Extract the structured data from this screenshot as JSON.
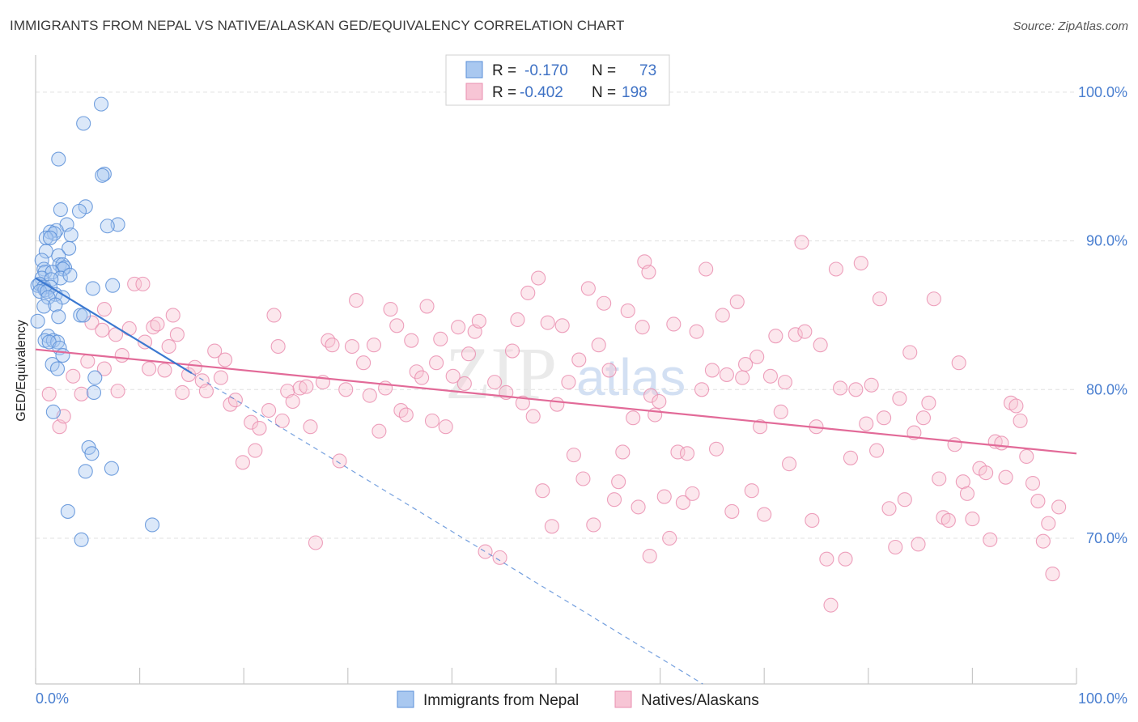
{
  "header": {
    "title": "IMMIGRANTS FROM NEPAL VS NATIVE/ALASKAN GED/EQUIVALENCY CORRELATION CHART",
    "source": "Source: ZipAtlas.com"
  },
  "watermark": {
    "zip": "ZIP",
    "atlas": "atlas"
  },
  "legend": {
    "items": [
      {
        "r_label": "R =",
        "r_value": "-0.170",
        "n_label": "N =",
        "n_value": "73"
      },
      {
        "r_label": "R =",
        "r_value": "-0.402",
        "n_label": "N =",
        "n_value": "198"
      }
    ]
  },
  "colors": {
    "blue_fill": "#a9c8f0",
    "blue_stroke": "#5a8fd8",
    "blue_line": "#3b78d0",
    "pink_fill": "#f7c5d5",
    "pink_stroke": "#ea8fb0",
    "pink_line": "#e26a98",
    "grid": "#e0e0e0",
    "tick_text": "#4a7fd0"
  },
  "chart_data": {
    "type": "scatter",
    "title": "IMMIGRANTS FROM NEPAL VS NATIVE/ALASKAN GED/EQUIVALENCY CORRELATION CHART",
    "xlabel": "",
    "ylabel": "GED/Equivalency",
    "xlim": [
      0,
      100
    ],
    "ylim": [
      60.2,
      102.5
    ],
    "x_tick_labels": [
      "0.0%",
      "100.0%"
    ],
    "y_ticks": [
      70,
      80,
      90,
      100
    ],
    "y_tick_labels": [
      "70.0%",
      "80.0%",
      "90.0%",
      "100.0%"
    ],
    "grid": true,
    "series": [
      {
        "name": "Immigrants from Nepal",
        "color": "blue",
        "R": -0.17,
        "N": 73,
        "trend": {
          "x": [
            0,
            15
          ],
          "y": [
            87.5,
            81.1
          ]
        },
        "trend_extension": {
          "x": [
            15,
            64.1
          ],
          "y": [
            81.1,
            60.2
          ]
        },
        "points": [
          [
            6.3,
            99.2
          ],
          [
            4.6,
            97.9
          ],
          [
            2.2,
            95.5
          ],
          [
            6.6,
            94.5
          ],
          [
            6.4,
            94.4
          ],
          [
            4.8,
            92.3
          ],
          [
            4.2,
            92.0
          ],
          [
            2.4,
            92.1
          ],
          [
            3.0,
            91.1
          ],
          [
            7.9,
            91.1
          ],
          [
            6.9,
            91.0
          ],
          [
            2.0,
            90.7
          ],
          [
            1.4,
            90.6
          ],
          [
            1.8,
            90.5
          ],
          [
            3.4,
            90.4
          ],
          [
            1.0,
            90.2
          ],
          [
            1.4,
            90.2
          ],
          [
            3.2,
            89.5
          ],
          [
            1.0,
            89.3
          ],
          [
            2.2,
            89.0
          ],
          [
            0.6,
            88.7
          ],
          [
            2.3,
            88.4
          ],
          [
            2.6,
            88.4
          ],
          [
            2.8,
            88.2
          ],
          [
            0.8,
            88.1
          ],
          [
            2.6,
            88.1
          ],
          [
            0.9,
            87.9
          ],
          [
            1.6,
            87.9
          ],
          [
            0.6,
            87.5
          ],
          [
            2.4,
            87.5
          ],
          [
            3.3,
            87.7
          ],
          [
            1.5,
            87.4
          ],
          [
            0.2,
            87.0
          ],
          [
            0.4,
            87.1
          ],
          [
            0.8,
            86.9
          ],
          [
            1.4,
            86.9
          ],
          [
            0.9,
            86.7
          ],
          [
            0.4,
            86.6
          ],
          [
            1.1,
            86.6
          ],
          [
            1.9,
            86.4
          ],
          [
            1.2,
            86.2
          ],
          [
            2.6,
            86.2
          ],
          [
            7.4,
            87.0
          ],
          [
            5.5,
            86.8
          ],
          [
            0.8,
            85.6
          ],
          [
            1.9,
            85.7
          ],
          [
            4.3,
            85.0
          ],
          [
            4.6,
            85.0
          ],
          [
            2.2,
            84.9
          ],
          [
            0.2,
            84.6
          ],
          [
            1.2,
            83.6
          ],
          [
            0.9,
            83.3
          ],
          [
            1.7,
            83.3
          ],
          [
            2.1,
            83.2
          ],
          [
            1.3,
            83.2
          ],
          [
            2.3,
            82.8
          ],
          [
            2.6,
            82.3
          ],
          [
            1.6,
            81.7
          ],
          [
            2.1,
            81.4
          ],
          [
            5.7,
            80.8
          ],
          [
            5.6,
            79.8
          ],
          [
            1.7,
            78.5
          ],
          [
            5.1,
            76.1
          ],
          [
            5.4,
            75.7
          ],
          [
            7.3,
            74.7
          ],
          [
            4.8,
            74.5
          ],
          [
            3.1,
            71.8
          ],
          [
            11.2,
            70.9
          ],
          [
            4.4,
            69.9
          ]
        ]
      },
      {
        "name": "Natives/Alaskans",
        "color": "pink",
        "R": -0.402,
        "N": 198,
        "trend": {
          "x": [
            0,
            100
          ],
          "y": [
            82.7,
            75.7
          ]
        },
        "points": [
          [
            1.3,
            79.7
          ],
          [
            2.3,
            77.5
          ],
          [
            2.7,
            78.2
          ],
          [
            3.6,
            80.9
          ],
          [
            4.4,
            79.7
          ],
          [
            5.0,
            81.9
          ],
          [
            5.4,
            84.5
          ],
          [
            6.4,
            84.0
          ],
          [
            6.6,
            85.4
          ],
          [
            6.6,
            81.4
          ],
          [
            7.7,
            83.7
          ],
          [
            7.9,
            79.9
          ],
          [
            8.3,
            82.3
          ],
          [
            9.0,
            84.1
          ],
          [
            9.5,
            87.1
          ],
          [
            10.3,
            87.1
          ],
          [
            10.5,
            83.2
          ],
          [
            10.9,
            81.4
          ],
          [
            11.3,
            84.2
          ],
          [
            11.7,
            84.4
          ],
          [
            12.4,
            81.3
          ],
          [
            12.8,
            82.9
          ],
          [
            13.2,
            85.0
          ],
          [
            13.6,
            83.7
          ],
          [
            14.1,
            79.8
          ],
          [
            14.7,
            81.0
          ],
          [
            15.3,
            81.5
          ],
          [
            16.0,
            80.6
          ],
          [
            16.4,
            79.9
          ],
          [
            17.2,
            82.6
          ],
          [
            17.8,
            80.8
          ],
          [
            18.2,
            82.0
          ],
          [
            18.7,
            79.0
          ],
          [
            19.2,
            79.3
          ],
          [
            19.9,
            75.1
          ],
          [
            20.7,
            77.8
          ],
          [
            21.1,
            75.9
          ],
          [
            21.5,
            77.4
          ],
          [
            22.4,
            78.6
          ],
          [
            22.9,
            85.0
          ],
          [
            23.3,
            82.9
          ],
          [
            23.7,
            77.9
          ],
          [
            24.2,
            79.9
          ],
          [
            24.7,
            79.2
          ],
          [
            25.4,
            80.1
          ],
          [
            26.0,
            80.2
          ],
          [
            26.4,
            77.5
          ],
          [
            26.9,
            69.7
          ],
          [
            27.6,
            80.5
          ],
          [
            28.1,
            83.3
          ],
          [
            28.5,
            83.0
          ],
          [
            29.2,
            75.2
          ],
          [
            29.8,
            80.0
          ],
          [
            30.4,
            82.9
          ],
          [
            30.8,
            86.0
          ],
          [
            31.5,
            81.8
          ],
          [
            32.1,
            79.6
          ],
          [
            32.5,
            83.0
          ],
          [
            33.0,
            77.2
          ],
          [
            33.6,
            80.1
          ],
          [
            34.1,
            85.4
          ],
          [
            34.7,
            84.3
          ],
          [
            35.1,
            78.6
          ],
          [
            35.6,
            78.3
          ],
          [
            36.1,
            83.3
          ],
          [
            36.6,
            81.2
          ],
          [
            37.1,
            80.8
          ],
          [
            37.6,
            85.6
          ],
          [
            38.1,
            77.9
          ],
          [
            38.5,
            81.8
          ],
          [
            38.9,
            83.4
          ],
          [
            39.4,
            77.5
          ],
          [
            40.1,
            80.9
          ],
          [
            40.6,
            84.2
          ],
          [
            41.2,
            80.4
          ],
          [
            41.6,
            82.4
          ],
          [
            42.2,
            83.9
          ],
          [
            42.6,
            84.6
          ],
          [
            43.2,
            69.1
          ],
          [
            44.1,
            80.5
          ],
          [
            44.6,
            68.7
          ],
          [
            45.2,
            79.8
          ],
          [
            45.8,
            82.6
          ],
          [
            46.3,
            84.7
          ],
          [
            46.8,
            79.1
          ],
          [
            47.3,
            86.5
          ],
          [
            47.8,
            78.2
          ],
          [
            48.3,
            87.5
          ],
          [
            48.7,
            73.2
          ],
          [
            49.2,
            84.5
          ],
          [
            49.6,
            70.8
          ],
          [
            50.1,
            79.0
          ],
          [
            50.6,
            84.3
          ],
          [
            51.2,
            80.5
          ],
          [
            51.7,
            75.6
          ],
          [
            52.2,
            82.0
          ],
          [
            52.6,
            74.0
          ],
          [
            53.1,
            86.8
          ],
          [
            53.6,
            70.9
          ],
          [
            54.1,
            83.0
          ],
          [
            54.6,
            85.8
          ],
          [
            55.1,
            81.3
          ],
          [
            55.6,
            72.6
          ],
          [
            56.0,
            73.8
          ],
          [
            56.4,
            75.8
          ],
          [
            56.9,
            85.3
          ],
          [
            57.4,
            78.1
          ],
          [
            57.9,
            72.1
          ],
          [
            58.3,
            84.2
          ],
          [
            59.0,
            68.8
          ],
          [
            58.5,
            88.6
          ],
          [
            58.9,
            87.9
          ],
          [
            59.1,
            79.6
          ],
          [
            59.5,
            78.3
          ],
          [
            59.9,
            79.2
          ],
          [
            60.4,
            72.8
          ],
          [
            60.9,
            70.0
          ],
          [
            61.3,
            84.4
          ],
          [
            61.7,
            75.8
          ],
          [
            62.2,
            72.4
          ],
          [
            62.6,
            75.7
          ],
          [
            63.1,
            73.0
          ],
          [
            63.5,
            83.9
          ],
          [
            64.0,
            80.0
          ],
          [
            64.4,
            88.1
          ],
          [
            65.0,
            81.3
          ],
          [
            65.4,
            76.0
          ],
          [
            66.0,
            85.0
          ],
          [
            66.4,
            81.0
          ],
          [
            66.9,
            71.8
          ],
          [
            67.4,
            85.9
          ],
          [
            67.9,
            80.8
          ],
          [
            68.2,
            81.7
          ],
          [
            68.8,
            73.2
          ],
          [
            69.3,
            82.2
          ],
          [
            69.6,
            77.5
          ],
          [
            70.0,
            71.6
          ],
          [
            70.6,
            80.9
          ],
          [
            71.1,
            83.6
          ],
          [
            71.6,
            78.5
          ],
          [
            72.0,
            80.5
          ],
          [
            72.4,
            75.0
          ],
          [
            73.0,
            83.7
          ],
          [
            73.6,
            89.9
          ],
          [
            73.9,
            83.9
          ],
          [
            74.6,
            71.2
          ],
          [
            75.0,
            77.5
          ],
          [
            75.4,
            83.0
          ],
          [
            76.0,
            68.6
          ],
          [
            76.4,
            65.5
          ],
          [
            76.9,
            88.1
          ],
          [
            77.3,
            80.1
          ],
          [
            77.8,
            68.6
          ],
          [
            78.3,
            75.4
          ],
          [
            78.8,
            80.0
          ],
          [
            79.3,
            88.5
          ],
          [
            79.8,
            77.7
          ],
          [
            80.3,
            80.3
          ],
          [
            80.8,
            75.9
          ],
          [
            81.1,
            86.1
          ],
          [
            81.5,
            78.1
          ],
          [
            82.0,
            72.0
          ],
          [
            82.6,
            69.4
          ],
          [
            83.0,
            79.4
          ],
          [
            83.5,
            72.6
          ],
          [
            84.0,
            82.5
          ],
          [
            84.4,
            77.1
          ],
          [
            84.8,
            69.6
          ],
          [
            85.3,
            78.1
          ],
          [
            85.8,
            79.1
          ],
          [
            86.3,
            86.1
          ],
          [
            86.8,
            74.0
          ],
          [
            87.2,
            71.4
          ],
          [
            87.7,
            71.2
          ],
          [
            88.3,
            76.3
          ],
          [
            88.7,
            81.8
          ],
          [
            89.1,
            73.8
          ],
          [
            89.5,
            73.0
          ],
          [
            90.0,
            71.3
          ],
          [
            90.7,
            74.7
          ],
          [
            91.3,
            74.4
          ],
          [
            91.7,
            69.9
          ],
          [
            92.2,
            76.5
          ],
          [
            92.8,
            76.4
          ],
          [
            93.2,
            74.1
          ],
          [
            93.7,
            79.1
          ],
          [
            94.2,
            78.9
          ],
          [
            94.6,
            77.9
          ],
          [
            95.2,
            75.5
          ],
          [
            95.8,
            73.7
          ],
          [
            96.3,
            72.5
          ],
          [
            96.8,
            69.8
          ],
          [
            97.3,
            71.0
          ],
          [
            97.7,
            67.6
          ],
          [
            98.3,
            72.1
          ]
        ]
      }
    ]
  },
  "bottom_legend": {
    "items": [
      {
        "label": "Immigrants from Nepal"
      },
      {
        "label": "Natives/Alaskans"
      }
    ]
  }
}
